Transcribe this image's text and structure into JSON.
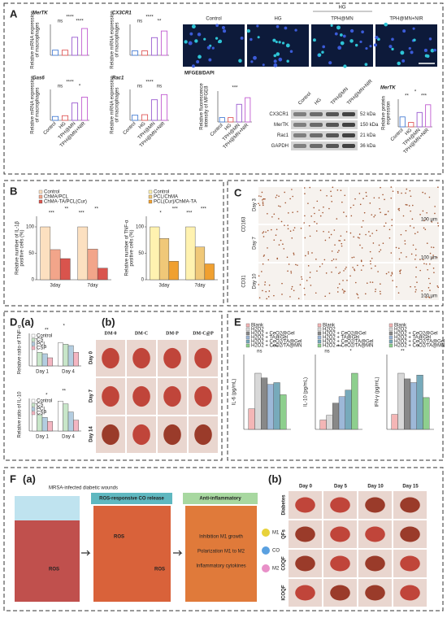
{
  "panel_a": {
    "label": "A",
    "categories": [
      "Control",
      "HG",
      "TPH@MN",
      "TPH@MN+NIR"
    ],
    "colors": [
      "#4a7fd4",
      "#e05a5a",
      "#9a5bd0",
      "#c05bd0"
    ],
    "gene_charts": [
      {
        "title": "MerTK",
        "ylabel": [
          "Relative mRNA expression",
          "of macrophages"
        ],
        "values": [
          1,
          1,
          3.5,
          5.2
        ],
        "ylim": [
          0,
          6
        ],
        "sig": [
          "ns",
          "****",
          "****"
        ]
      },
      {
        "title": "CX3CR1",
        "ylabel": [
          "Relative mRNA expression",
          "of macrophages"
        ],
        "values": [
          1,
          1,
          4,
          5.5
        ],
        "ylim": [
          0,
          7
        ],
        "sig": [
          "ns",
          "****",
          "**"
        ]
      },
      {
        "title": "Gas6",
        "ylabel": [
          "Relative mRNA expression",
          "of macrophages"
        ],
        "values": [
          1,
          1.2,
          4.5,
          6
        ],
        "ylim": [
          0,
          8
        ],
        "sig": [
          "ns",
          "****",
          "*"
        ]
      },
      {
        "title": "Rac1",
        "ylabel": [
          "Relative mRNA expression",
          "of macrophages"
        ],
        "values": [
          1,
          1.1,
          4,
          5
        ],
        "ylim": [
          0,
          6
        ],
        "sig": [
          "ns",
          "****",
          "ns"
        ]
      }
    ],
    "image_header": {
      "group": "HG",
      "columns": [
        "Control",
        "HG",
        "TPH@MN",
        "TPH@MN+NIR"
      ]
    },
    "stain": "MFGE8/DAPI",
    "mfge8_chart": {
      "ylabel": [
        "Relative fluorescence",
        "intensity of MFGE8"
      ],
      "values": [
        1,
        1,
        4,
        5.5
      ],
      "ylim": [
        0,
        7
      ],
      "sig": [
        "***"
      ]
    },
    "blot": {
      "rows": [
        "CX3CR1",
        "MerTK",
        "Rac1",
        "GAPDH"
      ],
      "sizes": [
        "52 kDa",
        "150 kDa",
        "21 kDa",
        "36 kDa"
      ]
    },
    "protein_chart": {
      "title": "MerTK",
      "ylabel": [
        "Relative protein",
        "expression"
      ],
      "values": [
        0.9,
        0.4,
        1.3,
        2.0
      ],
      "ylim": [
        0,
        2.5
      ],
      "sig": [
        "**",
        "*",
        "***"
      ]
    }
  },
  "panel_b": {
    "label": "B",
    "categories": [
      "3day",
      "7day"
    ],
    "charts": [
      {
        "ylabel": [
          "Relative number of IL-1β",
          "positive cells (%)"
        ],
        "ylim": [
          0,
          120
        ],
        "yticks": [
          0,
          50,
          100
        ],
        "sig": [
          "***",
          "**",
          "***",
          "**"
        ],
        "series": [
          {
            "name": "Control",
            "color": "#fce0c0",
            "values": [
              100,
              100
            ]
          },
          {
            "name": "ChMA/PCL",
            "color": "#f2a58a",
            "values": [
              57,
              58
            ]
          },
          {
            "name": "ChMA-TA/PCL(Cur)",
            "color": "#d9544d",
            "values": [
              40,
              22
            ]
          }
        ]
      },
      {
        "ylabel": [
          "Relative number of TNF-α",
          "positive cells (%)"
        ],
        "ylim": [
          0,
          120
        ],
        "yticks": [
          0,
          50,
          100
        ],
        "sig": [
          "*",
          "***",
          "***",
          "***"
        ],
        "series": [
          {
            "name": "Control",
            "color": "#fff2b0",
            "values": [
              100,
              100
            ]
          },
          {
            "name": "PCL/ChMA",
            "color": "#f0c878",
            "values": [
              78,
              62
            ]
          },
          {
            "name": "PCL(Cur)/ChMA-TA",
            "color": "#f0a030",
            "values": [
              35,
              30
            ]
          }
        ]
      }
    ]
  },
  "panel_c": {
    "label": "C",
    "rows": [
      "Day 3",
      "Day 7",
      "Day 10"
    ],
    "markers": [
      "CD163",
      "CD31"
    ],
    "scale": "100 μm"
  },
  "panel_d": {
    "label": "D",
    "sub_a": "(a)",
    "sub_b": "(b)",
    "categories": [
      "Day 1",
      "Day 4"
    ],
    "charts": [
      {
        "ylabel": "Relative ratio of TNF-α",
        "ylim": [
          0,
          1.2
        ],
        "sig": [
          "**",
          "*"
        ],
        "series": [
          {
            "name": "Control",
            "color": "#ffffff",
            "values": [
              1,
              0.85
            ]
          },
          {
            "name": "CS",
            "color": "#c8e6c9",
            "values": [
              0.5,
              0.8
            ]
          },
          {
            "name": "PCL",
            "color": "#b3cde0",
            "values": [
              0.45,
              0.75
            ]
          },
          {
            "name": "CSP",
            "color": "#f4b6c2",
            "values": [
              0.3,
              0.5
            ]
          }
        ]
      },
      {
        "ylabel": "Relative ratio of IL-10",
        "ylim": [
          0,
          1.2
        ],
        "sig": [
          "*",
          "**"
        ],
        "series": [
          {
            "name": "Control",
            "color": "#ffffff",
            "values": [
              1,
              1.1
            ]
          },
          {
            "name": "CS",
            "color": "#c8e6c9",
            "values": [
              0.6,
              1
            ]
          },
          {
            "name": "PCL",
            "color": "#b3cde0",
            "values": [
              0.5,
              0.7
            ]
          },
          {
            "name": "CSP",
            "color": "#f4b6c2",
            "values": [
              0.35,
              0.4
            ]
          }
        ]
      }
    ],
    "columns": [
      "DM-0",
      "DM-C",
      "DM-P",
      "DM-C@P"
    ],
    "rows": [
      "Day 0",
      "Day 7",
      "Day 14"
    ]
  },
  "panel_e": {
    "label": "E",
    "categories": [
      null
    ],
    "charts": [
      {
        "ylabel": "IL-6 (pg/mL)",
        "ylim": [
          0,
          80
        ],
        "sig": [
          "ns",
          "***"
        ],
        "series": [
          {
            "name": "Blank",
            "color": "#f4b6b6",
            "values": [
              22
            ]
          },
          {
            "name": "H2O2",
            "color": "#d8d8d8",
            "values": [
              60
            ]
          },
          {
            "name": "H2O2 + CeO2@Gel",
            "color": "#888888",
            "values": [
              55
            ]
          },
          {
            "name": "H2O2 + TA@Gel",
            "color": "#9db8d8",
            "values": [
              48
            ]
          },
          {
            "name": "H2O2 + CeO2/TA@Gel",
            "color": "#77aabb",
            "values": [
              50
            ]
          },
          {
            "name": "H2O2 + CeO2/TA@MN",
            "color": "#8ecf8e",
            "values": [
              37
            ]
          }
        ]
      },
      {
        "ylabel": "IL-10 (pg/mL)",
        "ylim": [
          0,
          80
        ],
        "sig": [
          "ns",
          "***",
          "*"
        ],
        "series": [
          {
            "name": "Blank",
            "color": "#f4b6b6",
            "values": [
              10
            ]
          },
          {
            "name": "H2O2",
            "color": "#d8d8d8",
            "values": [
              15
            ]
          },
          {
            "name": "H2O2 + CeO2@Gel",
            "color": "#888888",
            "values": [
              28
            ]
          },
          {
            "name": "H2O2 + TA@Gel",
            "color": "#9db8d8",
            "values": [
              35
            ]
          },
          {
            "name": "H2O2 + CeO2/TA@Gel",
            "color": "#77aabb",
            "values": [
              42
            ]
          },
          {
            "name": "H2O2 + CeO2/TA@MN",
            "color": "#8ecf8e",
            "values": [
              60
            ]
          }
        ]
      },
      {
        "ylabel": "IFN-γ (pg/mL)",
        "ylim": [
          0,
          200
        ],
        "sig": [
          "**",
          "*"
        ],
        "series": [
          {
            "name": "Blank",
            "color": "#f4b6b6",
            "values": [
              40
            ]
          },
          {
            "name": "H2O2",
            "color": "#d8d8d8",
            "values": [
              150
            ]
          },
          {
            "name": "H2O2 + CeO2@Gel",
            "color": "#888888",
            "values": [
              135
            ]
          },
          {
            "name": "H2O2 + TA@Gel",
            "color": "#9db8d8",
            "values": [
              125
            ]
          },
          {
            "name": "H2O2 + CeO2/TA@Gel",
            "color": "#77aabb",
            "values": [
              145
            ]
          },
          {
            "name": "H2O2 + CeO2/TA@MN",
            "color": "#8ecf8e",
            "values": [
              85
            ]
          }
        ]
      }
    ]
  },
  "panel_f": {
    "label": "F",
    "sub_a": "(a)",
    "sub_b": "(b)",
    "wound": "MRSA-infected diabetic wounds",
    "release": "ROS-responsive CO release",
    "ros": "ROS",
    "effect": "Anti-inflammatory",
    "effects": [
      "Inhibition M1 growth",
      "Polarization M1 to M2",
      "Inflammatory cytokines"
    ],
    "legend": [
      "M1",
      "CO",
      "M2"
    ],
    "columns": [
      "Day 0",
      "Day 5",
      "Day 10",
      "Day 15"
    ],
    "rows": [
      "Diabetes",
      "QFs",
      "COQF",
      "ICOQF"
    ]
  }
}
